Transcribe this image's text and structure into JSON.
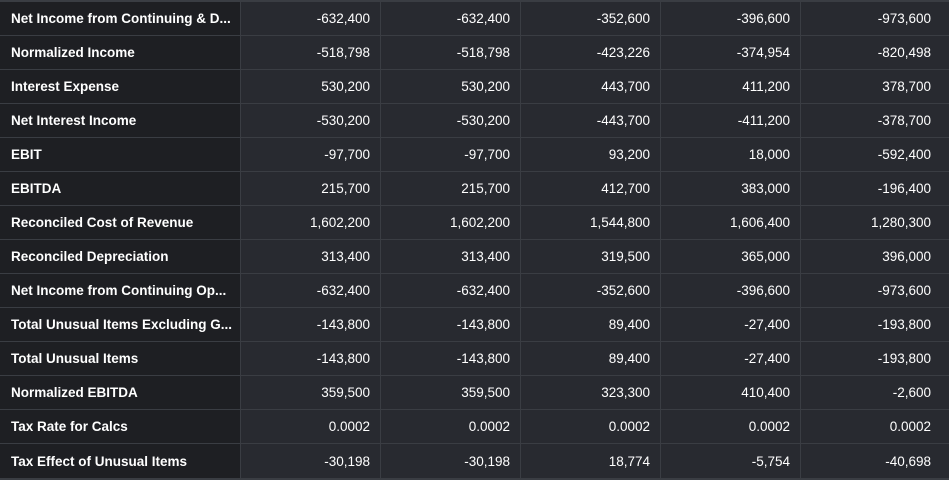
{
  "rows": [
    {
      "label": "Net Income from Continuing & D...",
      "values": [
        "-632,400",
        "-632,400",
        "-352,600",
        "-396,600",
        "-973,600"
      ]
    },
    {
      "label": "Normalized Income",
      "values": [
        "-518,798",
        "-518,798",
        "-423,226",
        "-374,954",
        "-820,498"
      ]
    },
    {
      "label": "Interest Expense",
      "values": [
        "530,200",
        "530,200",
        "443,700",
        "411,200",
        "378,700"
      ]
    },
    {
      "label": "Net Interest Income",
      "values": [
        "-530,200",
        "-530,200",
        "-443,700",
        "-411,200",
        "-378,700"
      ]
    },
    {
      "label": "EBIT",
      "values": [
        "-97,700",
        "-97,700",
        "93,200",
        "18,000",
        "-592,400"
      ]
    },
    {
      "label": "EBITDA",
      "values": [
        "215,700",
        "215,700",
        "412,700",
        "383,000",
        "-196,400"
      ]
    },
    {
      "label": "Reconciled Cost of Revenue",
      "values": [
        "1,602,200",
        "1,602,200",
        "1,544,800",
        "1,606,400",
        "1,280,300"
      ]
    },
    {
      "label": "Reconciled Depreciation",
      "values": [
        "313,400",
        "313,400",
        "319,500",
        "365,000",
        "396,000"
      ]
    },
    {
      "label": "Net Income from Continuing Op...",
      "values": [
        "-632,400",
        "-632,400",
        "-352,600",
        "-396,600",
        "-973,600"
      ]
    },
    {
      "label": "Total Unusual Items Excluding G...",
      "values": [
        "-143,800",
        "-143,800",
        "89,400",
        "-27,400",
        "-193,800"
      ]
    },
    {
      "label": "Total Unusual Items",
      "values": [
        "-143,800",
        "-143,800",
        "89,400",
        "-27,400",
        "-193,800"
      ]
    },
    {
      "label": "Normalized EBITDA",
      "values": [
        "359,500",
        "359,500",
        "323,300",
        "410,400",
        "-2,600"
      ]
    },
    {
      "label": "Tax Rate for Calcs",
      "values": [
        "0.0002",
        "0.0002",
        "0.0002",
        "0.0002",
        "0.0002"
      ]
    },
    {
      "label": "Tax Effect of Unusual Items",
      "values": [
        "-30,198",
        "-30,198",
        "18,774",
        "-5,754",
        "-40,698"
      ]
    }
  ]
}
